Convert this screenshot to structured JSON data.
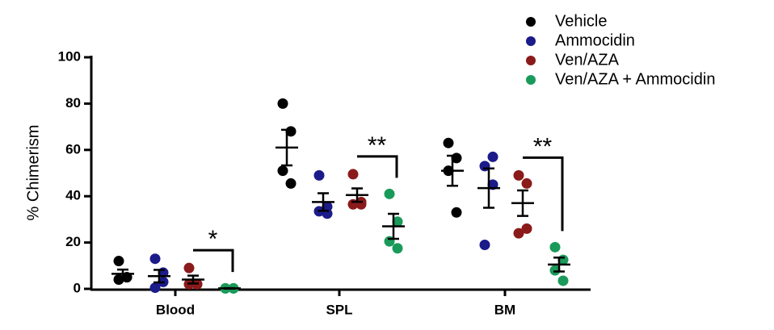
{
  "chart_data": {
    "type": "scatter",
    "y_label": "% Chimerism",
    "categories": [
      "Blood",
      "SPL",
      "BM"
    ],
    "ylim": [
      0,
      100
    ],
    "yticks": [
      0,
      20,
      40,
      60,
      80,
      100
    ],
    "series": [
      {
        "name": "Vehicle",
        "color": "#000000",
        "values": [
          [
            12,
            5,
            4,
            5
          ],
          [
            80,
            68,
            51,
            45.5
          ],
          [
            63,
            56.5,
            51,
            33
          ]
        ],
        "mean": [
          6.5,
          61,
          51
        ],
        "sem": [
          1.8,
          7.7,
          6.5
        ]
      },
      {
        "name": "Ammocidin",
        "color": "#1b1b8a",
        "values": [
          [
            13,
            7,
            0.5,
            3
          ],
          [
            49,
            32.5,
            33.5,
            35.5
          ],
          [
            53,
            57,
            19,
            45
          ]
        ],
        "mean": [
          5.5,
          37.5,
          43.5
        ],
        "sem": [
          2.7,
          3.8,
          8.5
        ]
      },
      {
        "name": "Ven/AZA",
        "color": "#8b1a1a",
        "values": [
          [
            9,
            2,
            2,
            2
          ],
          [
            49.5,
            36.5,
            36.5,
            37.5
          ],
          [
            49,
            45.5,
            24,
            26
          ]
        ],
        "mean": [
          4,
          40.5,
          37
        ],
        "sem": [
          1.7,
          2.9,
          5.5
        ]
      },
      {
        "name": "Ven/AZA + Ammocidin",
        "color": "#1a9a5a",
        "values": [
          [
            0.2,
            0.2,
            0.2,
            0.2
          ],
          [
            41,
            17.5,
            20.5,
            29
          ],
          [
            18,
            12.5,
            8,
            3.5
          ]
        ],
        "mean": [
          0.2,
          27,
          10.5
        ],
        "sem": [
          0.1,
          5.4,
          3
        ]
      }
    ],
    "significance": [
      "*",
      "**",
      "**"
    ]
  }
}
